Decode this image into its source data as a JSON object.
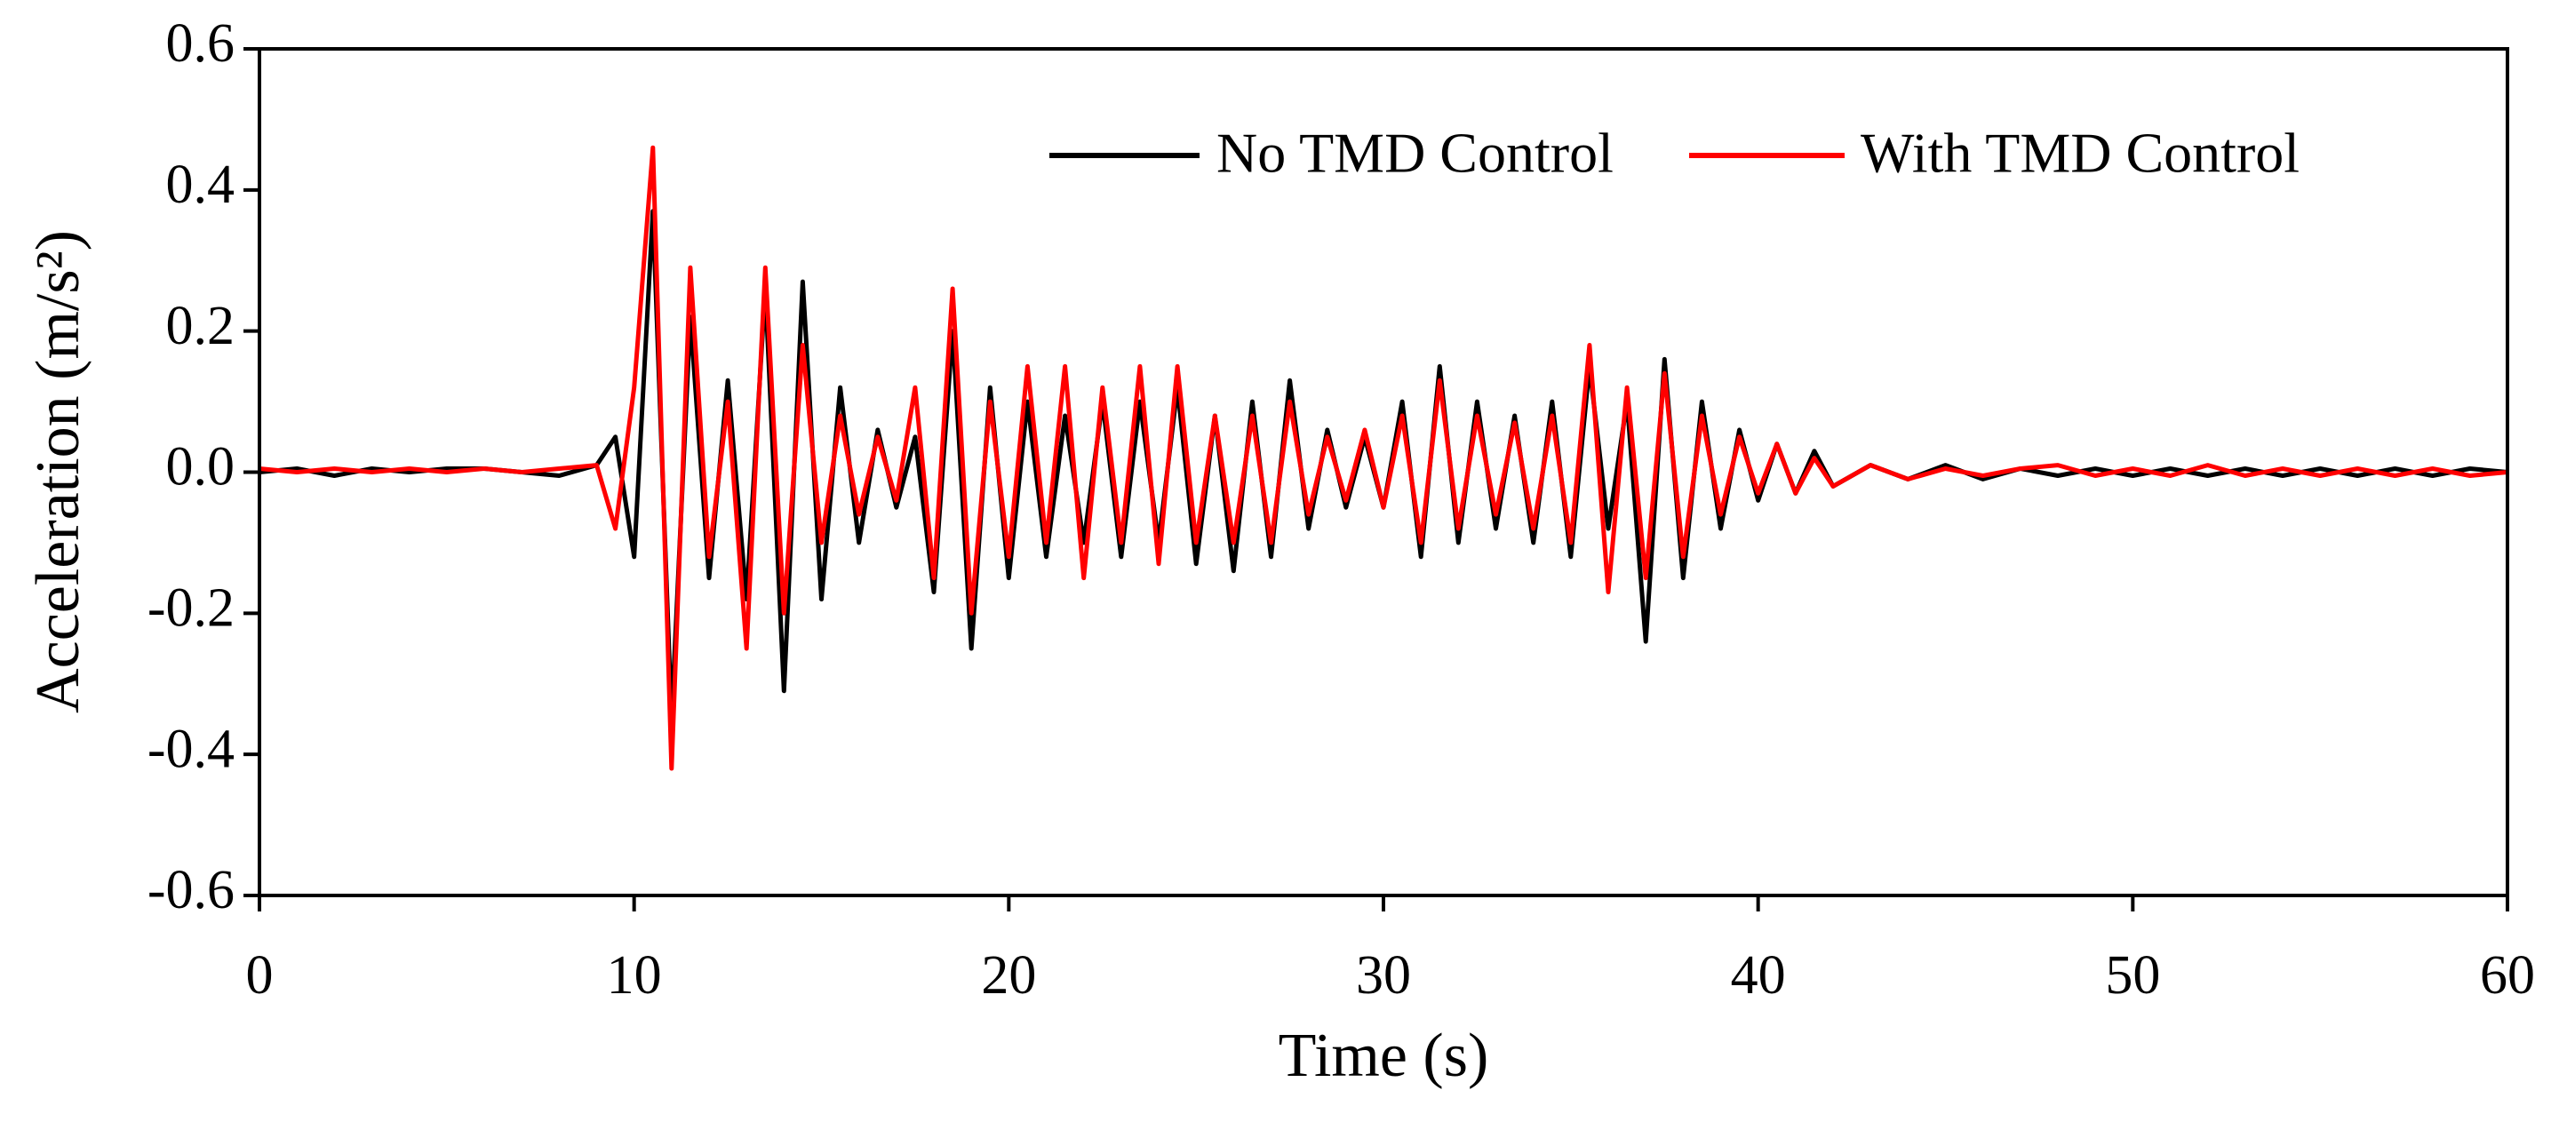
{
  "chart_data": {
    "type": "line",
    "xlabel": "Time (s)",
    "ylabel": "Acceleration (m/s²)",
    "x": [
      0,
      1,
      2,
      3,
      4,
      5,
      6,
      7,
      8,
      9,
      9.5,
      10,
      10.5,
      11,
      11.5,
      12,
      12.5,
      13,
      13.5,
      14,
      14.5,
      15,
      15.5,
      16,
      16.5,
      17,
      17.5,
      18,
      18.5,
      19,
      19.5,
      20,
      20.5,
      21,
      21.5,
      22,
      22.5,
      23,
      23.5,
      24,
      24.5,
      25,
      25.5,
      26,
      26.5,
      27,
      27.5,
      28,
      28.5,
      29,
      29.5,
      30,
      30.5,
      31,
      31.5,
      32,
      32.5,
      33,
      33.5,
      34,
      34.5,
      35,
      35.5,
      36,
      36.5,
      37,
      37.5,
      38,
      38.5,
      39,
      39.5,
      40,
      40.5,
      41,
      41.5,
      42,
      43,
      44,
      45,
      46,
      47,
      48,
      49,
      50,
      51,
      52,
      53,
      54,
      55,
      56,
      57,
      58,
      59,
      60
    ],
    "series": [
      {
        "name": "No TMD Control",
        "color": "#000000",
        "values": [
          0,
          0.005,
          -0.005,
          0.005,
          0,
          0.005,
          0.005,
          0,
          -0.005,
          0.01,
          0.05,
          -0.12,
          0.37,
          -0.35,
          0.22,
          -0.15,
          0.13,
          -0.18,
          0.26,
          -0.31,
          0.27,
          -0.18,
          0.12,
          -0.1,
          0.06,
          -0.05,
          0.05,
          -0.17,
          0.2,
          -0.25,
          0.12,
          -0.15,
          0.1,
          -0.12,
          0.08,
          -0.1,
          0.1,
          -0.12,
          0.1,
          -0.1,
          0.12,
          -0.13,
          0.08,
          -0.14,
          0.1,
          -0.12,
          0.13,
          -0.08,
          0.06,
          -0.05,
          0.05,
          -0.05,
          0.1,
          -0.12,
          0.15,
          -0.1,
          0.1,
          -0.08,
          0.08,
          -0.1,
          0.1,
          -0.12,
          0.15,
          -0.08,
          0.1,
          -0.24,
          0.16,
          -0.15,
          0.1,
          -0.08,
          0.06,
          -0.04,
          0.04,
          -0.03,
          0.03,
          -0.02,
          0.01,
          -0.01,
          0.01,
          -0.01,
          0.005,
          -0.005,
          0.005,
          -0.005,
          0.005,
          -0.005,
          0.005,
          -0.005,
          0.005,
          -0.005,
          0.005,
          -0.005,
          0.005,
          0
        ]
      },
      {
        "name": "With TMD Control",
        "color": "#ff0000",
        "values": [
          0.005,
          0,
          0.005,
          0,
          0.005,
          0,
          0.005,
          0,
          0.005,
          0.01,
          -0.08,
          0.12,
          0.46,
          -0.42,
          0.29,
          -0.12,
          0.1,
          -0.25,
          0.29,
          -0.2,
          0.18,
          -0.1,
          0.08,
          -0.06,
          0.05,
          -0.04,
          0.12,
          -0.15,
          0.26,
          -0.2,
          0.1,
          -0.12,
          0.15,
          -0.1,
          0.15,
          -0.15,
          0.12,
          -0.1,
          0.15,
          -0.13,
          0.15,
          -0.1,
          0.08,
          -0.1,
          0.08,
          -0.1,
          0.1,
          -0.06,
          0.05,
          -0.04,
          0.06,
          -0.05,
          0.08,
          -0.1,
          0.13,
          -0.08,
          0.08,
          -0.06,
          0.07,
          -0.08,
          0.08,
          -0.1,
          0.18,
          -0.17,
          0.12,
          -0.15,
          0.14,
          -0.12,
          0.08,
          -0.06,
          0.05,
          -0.03,
          0.04,
          -0.03,
          0.02,
          -0.02,
          0.01,
          -0.01,
          0.005,
          -0.005,
          0.005,
          0.01,
          -0.005,
          0.005,
          -0.005,
          0.01,
          -0.005,
          0.005,
          -0.005,
          0.005,
          -0.005,
          0.005,
          -0.005,
          0
        ]
      }
    ],
    "xlim": [
      0,
      60
    ],
    "xticks": [
      0,
      10,
      20,
      30,
      40,
      50,
      60
    ],
    "ylim": [
      -0.6,
      0.6
    ],
    "yticks": [
      -0.6,
      -0.4,
      -0.2,
      {
        "value": 0,
        "label": "0.0"
      },
      0.2,
      0.4,
      0.6
    ],
    "legend": "upper right",
    "grid": false
  }
}
